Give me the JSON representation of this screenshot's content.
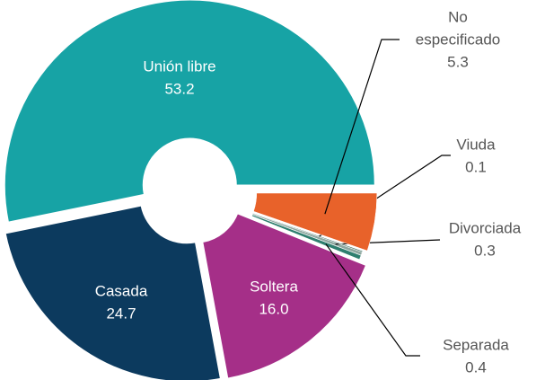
{
  "chart_data": {
    "type": "donut",
    "categories": [
      "Unión libre",
      "Casada",
      "Soltera",
      "Separada",
      "Divorciada",
      "Viuda",
      "No especificado"
    ],
    "category_lines": [
      [
        "Unión libre"
      ],
      [
        "Casada"
      ],
      [
        "Soltera"
      ],
      [
        "Separada"
      ],
      [
        "Divorciada"
      ],
      [
        "Viuda"
      ],
      [
        "No",
        "especificado"
      ]
    ],
    "values": [
      53.2,
      24.7,
      16.0,
      0.4,
      0.3,
      0.1,
      5.3
    ],
    "value_labels": [
      "53.2",
      "24.7",
      "16.0",
      "0.4",
      "0.3",
      "0.1",
      "5.3"
    ],
    "colors": [
      "#17a3a5",
      "#0c3a5e",
      "#a52f88",
      "#2f7f6f",
      "#8fa8a0",
      "#3a6e60",
      "#e8622a"
    ]
  }
}
